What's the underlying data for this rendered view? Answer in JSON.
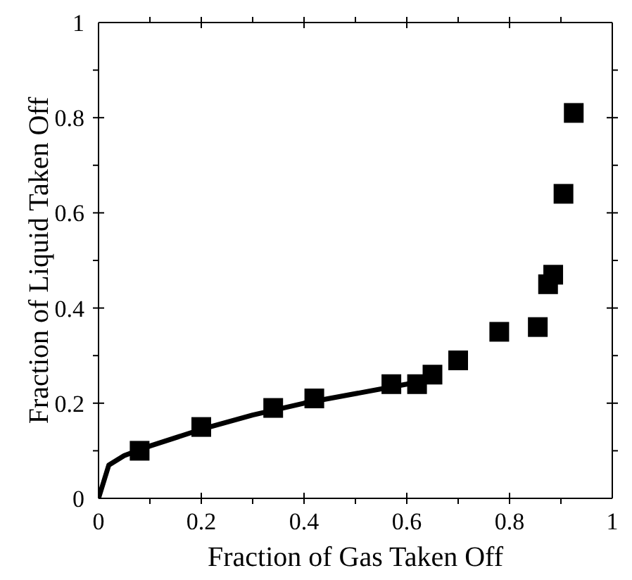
{
  "chart_data": {
    "type": "scatter",
    "xlabel": "Fraction of Gas Taken Off",
    "ylabel": "Fraction of Liquid Taken Off",
    "xlim": [
      0,
      1
    ],
    "ylim": [
      0,
      1
    ],
    "xticks": [
      0,
      {
        "value": 0.1,
        "label": null
      },
      0.2,
      {
        "value": 0.3,
        "label": null
      },
      0.4,
      {
        "value": 0.5,
        "label": null
      },
      0.6,
      {
        "value": 0.7,
        "label": null
      },
      0.8,
      {
        "value": 0.9,
        "label": null
      },
      1
    ],
    "yticks": [
      0,
      {
        "value": 0.1,
        "label": null
      },
      0.2,
      {
        "value": 0.3,
        "label": null
      },
      0.4,
      {
        "value": 0.5,
        "label": null
      },
      0.6,
      {
        "value": 0.7,
        "label": null
      },
      0.8,
      {
        "value": 0.9,
        "label": null
      },
      1
    ],
    "grid": false,
    "legend": false,
    "series": [
      {
        "color": "#000000",
        "marker": "square",
        "x": [
          0.08,
          0.2,
          0.34,
          0.42,
          0.57,
          0.62,
          0.65,
          0.7,
          0.78,
          0.855,
          0.875,
          0.885,
          0.905,
          0.925
        ],
        "values": [
          0.1,
          0.15,
          0.19,
          0.21,
          0.24,
          0.24,
          0.26,
          0.29,
          0.35,
          0.36,
          0.45,
          0.47,
          0.64,
          0.81
        ]
      },
      {
        "type": "line",
        "color": "#000000",
        "marker": "none",
        "line_style": "solid",
        "x": [
          0,
          0.02,
          0.05,
          0.1,
          0.2,
          0.3,
          0.4,
          0.5,
          0.6,
          0.66
        ],
        "values": [
          0,
          0.07,
          0.09,
          0.11,
          0.145,
          0.175,
          0.2,
          0.22,
          0.24,
          0.255
        ]
      }
    ]
  }
}
